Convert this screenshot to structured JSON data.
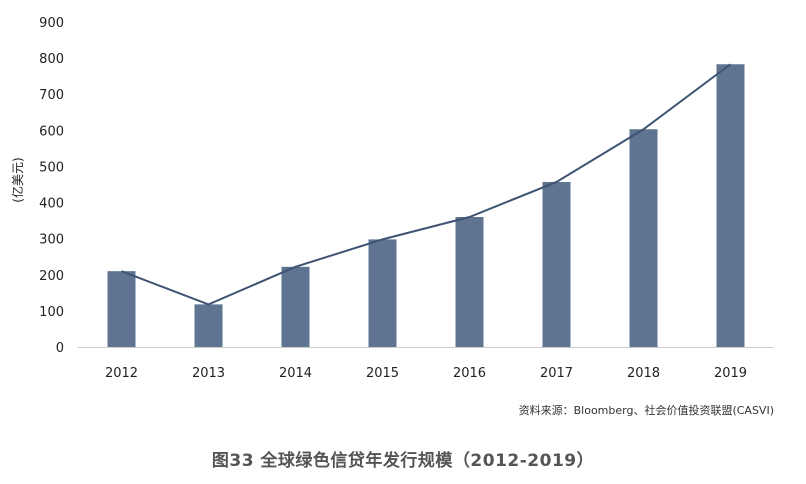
{
  "chart_data": {
    "type": "bar",
    "categories": [
      "2012",
      "2013",
      "2014",
      "2015",
      "2016",
      "2017",
      "2018",
      "2019"
    ],
    "values": [
      210,
      118,
      222,
      298,
      360,
      457,
      603,
      783
    ],
    "line_values": [
      210,
      118,
      222,
      298,
      360,
      457,
      603,
      783
    ],
    "ylabel": "(亿美元)",
    "ylim": [
      0,
      900
    ],
    "yticks": [
      0,
      100,
      200,
      300,
      400,
      500,
      600,
      700,
      800,
      900
    ],
    "grid": false,
    "bar_color": "#5f7490",
    "line_color": "#3f5373"
  },
  "source_note": "资料来源：Bloomberg、社会价值投资联盟(CASVI)",
  "caption": "图33  全球绿色信贷年发行规模（2012-2019）"
}
